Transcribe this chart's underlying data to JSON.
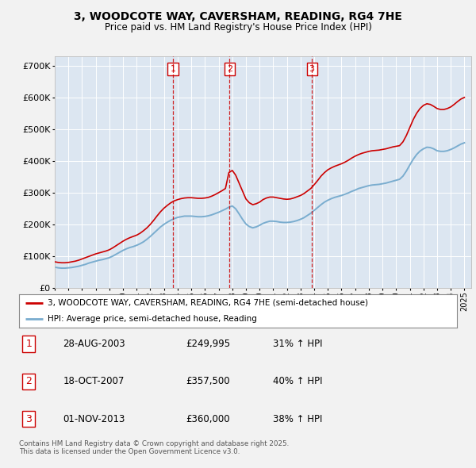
{
  "title": "3, WOODCOTE WAY, CAVERSHAM, READING, RG4 7HE",
  "subtitle": "Price paid vs. HM Land Registry's House Price Index (HPI)",
  "legend_line1": "3, WOODCOTE WAY, CAVERSHAM, READING, RG4 7HE (semi-detached house)",
  "legend_line2": "HPI: Average price, semi-detached house, Reading",
  "footer": "Contains HM Land Registry data © Crown copyright and database right 2025.\nThis data is licensed under the Open Government Licence v3.0.",
  "transactions": [
    {
      "num": "1",
      "date": "28-AUG-2003",
      "price": "£249,995",
      "hpi": "31% ↑ HPI",
      "x_year": 2003.66
    },
    {
      "num": "2",
      "date": "18-OCT-2007",
      "price": "£357,500",
      "hpi": "40% ↑ HPI",
      "x_year": 2007.8
    },
    {
      "num": "3",
      "date": "01-NOV-2013",
      "price": "£360,000",
      "hpi": "38% ↑ HPI",
      "x_year": 2013.83
    }
  ],
  "ylim": [
    0,
    730000
  ],
  "xlim_start": 1995,
  "xlim_end": 2025.5,
  "red_color": "#cc0000",
  "blue_color": "#7aadcf",
  "bg_color": "#dce6f1",
  "fig_bg": "#f2f2f2",
  "hpi_red_years": [
    1995.0,
    1995.25,
    1995.5,
    1995.75,
    1996.0,
    1996.25,
    1996.5,
    1996.75,
    1997.0,
    1997.25,
    1997.5,
    1997.75,
    1998.0,
    1998.25,
    1998.5,
    1998.75,
    1999.0,
    1999.25,
    1999.5,
    1999.75,
    2000.0,
    2000.25,
    2000.5,
    2000.75,
    2001.0,
    2001.25,
    2001.5,
    2001.75,
    2002.0,
    2002.25,
    2002.5,
    2002.75,
    2003.0,
    2003.25,
    2003.5,
    2003.75,
    2004.0,
    2004.25,
    2004.5,
    2004.75,
    2005.0,
    2005.25,
    2005.5,
    2005.75,
    2006.0,
    2006.25,
    2006.5,
    2006.75,
    2007.0,
    2007.25,
    2007.5,
    2007.75,
    2008.0,
    2008.25,
    2008.5,
    2008.75,
    2009.0,
    2009.25,
    2009.5,
    2009.75,
    2010.0,
    2010.25,
    2010.5,
    2010.75,
    2011.0,
    2011.25,
    2011.5,
    2011.75,
    2012.0,
    2012.25,
    2012.5,
    2012.75,
    2013.0,
    2013.25,
    2013.5,
    2013.75,
    2014.0,
    2014.25,
    2014.5,
    2014.75,
    2015.0,
    2015.25,
    2015.5,
    2015.75,
    2016.0,
    2016.25,
    2016.5,
    2016.75,
    2017.0,
    2017.25,
    2017.5,
    2017.75,
    2018.0,
    2018.25,
    2018.5,
    2018.75,
    2019.0,
    2019.25,
    2019.5,
    2019.75,
    2020.0,
    2020.25,
    2020.5,
    2020.75,
    2021.0,
    2021.25,
    2021.5,
    2021.75,
    2022.0,
    2022.25,
    2022.5,
    2022.75,
    2023.0,
    2023.25,
    2023.5,
    2023.75,
    2024.0,
    2024.25,
    2024.5,
    2024.75,
    2025.0
  ],
  "hpi_red_vals": [
    82000,
    80000,
    79000,
    79000,
    80000,
    82000,
    84000,
    87000,
    91000,
    95000,
    99000,
    103000,
    107000,
    110000,
    113000,
    116000,
    120000,
    126000,
    133000,
    140000,
    147000,
    153000,
    158000,
    162000,
    166000,
    172000,
    180000,
    189000,
    200000,
    213000,
    227000,
    240000,
    251000,
    260000,
    268000,
    274000,
    278000,
    281000,
    283000,
    284000,
    284000,
    283000,
    282000,
    282000,
    283000,
    285000,
    289000,
    294000,
    300000,
    306000,
    313000,
    363000,
    370000,
    355000,
    330000,
    305000,
    280000,
    268000,
    262000,
    265000,
    270000,
    278000,
    283000,
    286000,
    286000,
    284000,
    282000,
    280000,
    279000,
    280000,
    283000,
    287000,
    291000,
    297000,
    305000,
    313000,
    325000,
    338000,
    352000,
    363000,
    372000,
    378000,
    383000,
    387000,
    391000,
    396000,
    402000,
    409000,
    415000,
    420000,
    424000,
    427000,
    430000,
    432000,
    433000,
    434000,
    436000,
    438000,
    441000,
    444000,
    446000,
    448000,
    460000,
    480000,
    505000,
    530000,
    550000,
    565000,
    575000,
    580000,
    578000,
    572000,
    565000,
    562000,
    562000,
    565000,
    570000,
    578000,
    587000,
    595000,
    600000
  ],
  "hpi_blue_years": [
    1995.0,
    1995.25,
    1995.5,
    1995.75,
    1996.0,
    1996.25,
    1996.5,
    1996.75,
    1997.0,
    1997.25,
    1997.5,
    1997.75,
    1998.0,
    1998.25,
    1998.5,
    1998.75,
    1999.0,
    1999.25,
    1999.5,
    1999.75,
    2000.0,
    2000.25,
    2000.5,
    2000.75,
    2001.0,
    2001.25,
    2001.5,
    2001.75,
    2002.0,
    2002.25,
    2002.5,
    2002.75,
    2003.0,
    2003.25,
    2003.5,
    2003.75,
    2004.0,
    2004.25,
    2004.5,
    2004.75,
    2005.0,
    2005.25,
    2005.5,
    2005.75,
    2006.0,
    2006.25,
    2006.5,
    2006.75,
    2007.0,
    2007.25,
    2007.5,
    2007.75,
    2008.0,
    2008.25,
    2008.5,
    2008.75,
    2009.0,
    2009.25,
    2009.5,
    2009.75,
    2010.0,
    2010.25,
    2010.5,
    2010.75,
    2011.0,
    2011.25,
    2011.5,
    2011.75,
    2012.0,
    2012.25,
    2012.5,
    2012.75,
    2013.0,
    2013.25,
    2013.5,
    2013.75,
    2014.0,
    2014.25,
    2014.5,
    2014.75,
    2015.0,
    2015.25,
    2015.5,
    2015.75,
    2016.0,
    2016.25,
    2016.5,
    2016.75,
    2017.0,
    2017.25,
    2017.5,
    2017.75,
    2018.0,
    2018.25,
    2018.5,
    2018.75,
    2019.0,
    2019.25,
    2019.5,
    2019.75,
    2020.0,
    2020.25,
    2020.5,
    2020.75,
    2021.0,
    2021.25,
    2021.5,
    2021.75,
    2022.0,
    2022.25,
    2022.5,
    2022.75,
    2023.0,
    2023.25,
    2023.5,
    2023.75,
    2024.0,
    2024.25,
    2024.5,
    2024.75,
    2025.0
  ],
  "hpi_blue_vals": [
    65000,
    63000,
    62000,
    62000,
    63000,
    64000,
    66000,
    68000,
    71000,
    74000,
    78000,
    81000,
    84000,
    87000,
    89000,
    92000,
    95000,
    100000,
    106000,
    112000,
    118000,
    123000,
    127000,
    130000,
    134000,
    139000,
    145000,
    153000,
    162000,
    172000,
    182000,
    192000,
    200000,
    207000,
    213000,
    218000,
    222000,
    224000,
    226000,
    226000,
    226000,
    225000,
    224000,
    224000,
    225000,
    227000,
    230000,
    234000,
    238000,
    243000,
    248000,
    254000,
    258000,
    249000,
    233000,
    216000,
    201000,
    193000,
    189000,
    192000,
    197000,
    203000,
    207000,
    210000,
    210000,
    209000,
    207000,
    206000,
    206000,
    207000,
    209000,
    212000,
    216000,
    221000,
    228000,
    235000,
    244000,
    253000,
    262000,
    270000,
    276000,
    281000,
    285000,
    288000,
    291000,
    295000,
    299000,
    304000,
    308000,
    313000,
    316000,
    319000,
    322000,
    324000,
    325000,
    326000,
    328000,
    330000,
    333000,
    336000,
    339000,
    342000,
    352000,
    368000,
    387000,
    405000,
    420000,
    431000,
    438000,
    443000,
    442000,
    438000,
    432000,
    430000,
    430000,
    432000,
    436000,
    441000,
    447000,
    453000,
    457000
  ]
}
